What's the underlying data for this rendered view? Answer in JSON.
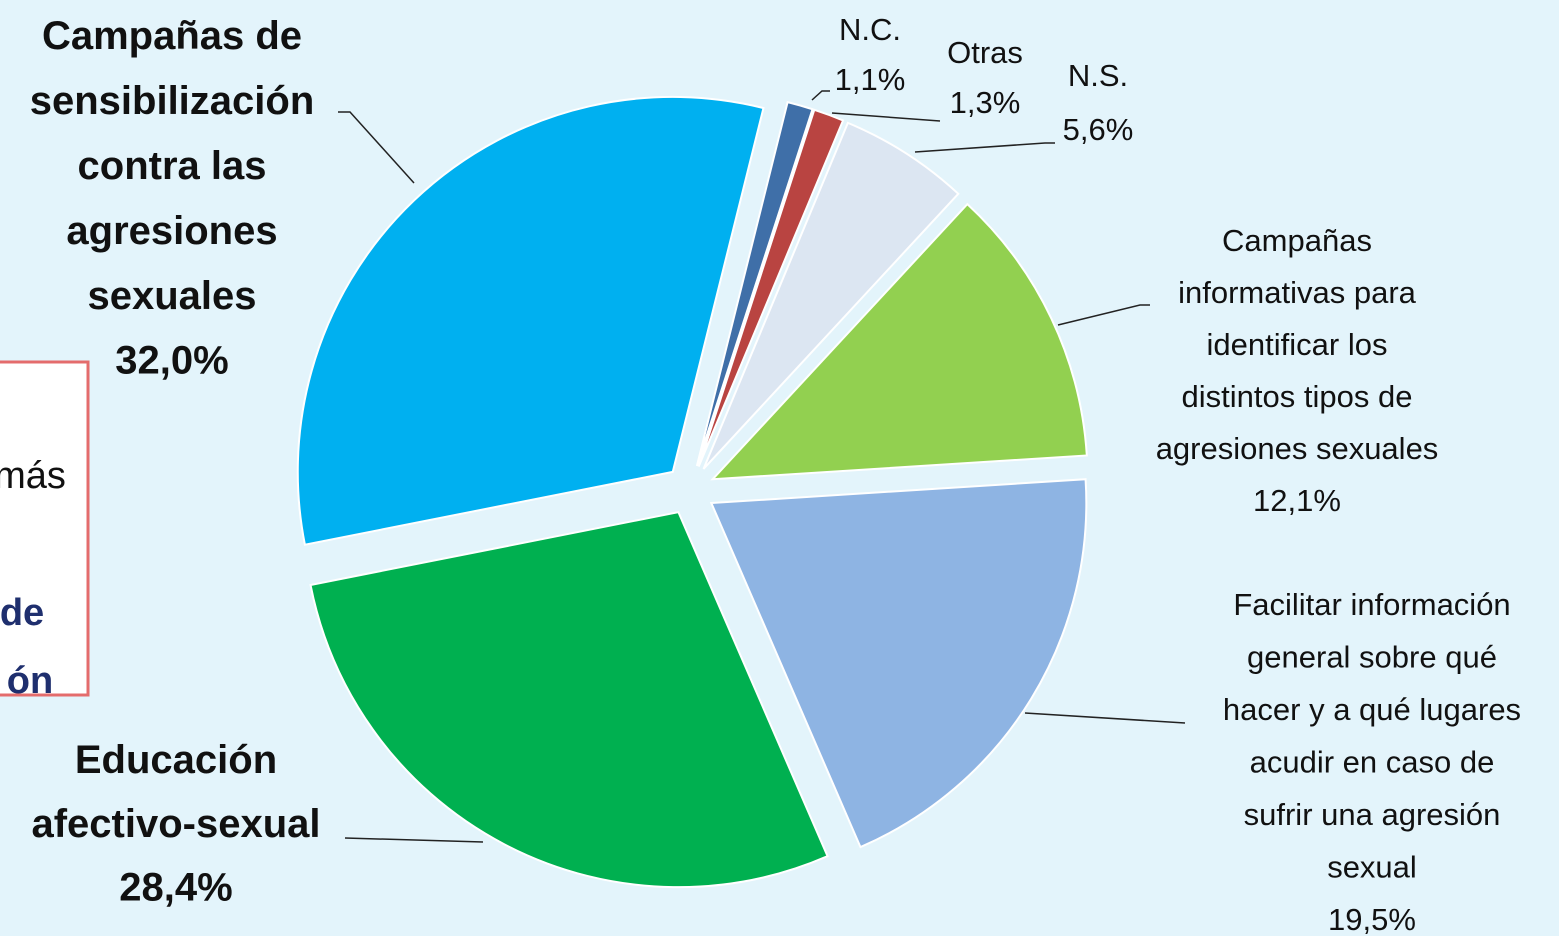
{
  "chart_data": {
    "type": "pie",
    "categories": [
      "N.C.",
      "Otras",
      "N.S.",
      "Campañas\ninformativas para\nidentificar los\ndistintos tipos de\nagresiones sexuales",
      "Facilitar información\ngeneral sobre qué\nhacer y a qué lugares\nacudir en caso de\nsufrir una agresión\nsexual",
      "Educación\nafectivo-sexual",
      "Campañas de\nsensibilización\ncontra las\nagresiones\nsexuales"
    ],
    "values": [
      1.1,
      1.3,
      5.6,
      12.1,
      19.5,
      28.4,
      32.0
    ],
    "value_labels": [
      "1,1%",
      "1,3%",
      "5,6%",
      "12,1%",
      "19,5%",
      "28,4%",
      "32,0%"
    ],
    "colors": [
      "#3f6fa8",
      "#b94441",
      "#dce6f2",
      "#92d050",
      "#8eb4e3",
      "#00b050",
      "#00b0f0"
    ],
    "annotations": [
      "más",
      "de",
      "ón"
    ]
  }
}
